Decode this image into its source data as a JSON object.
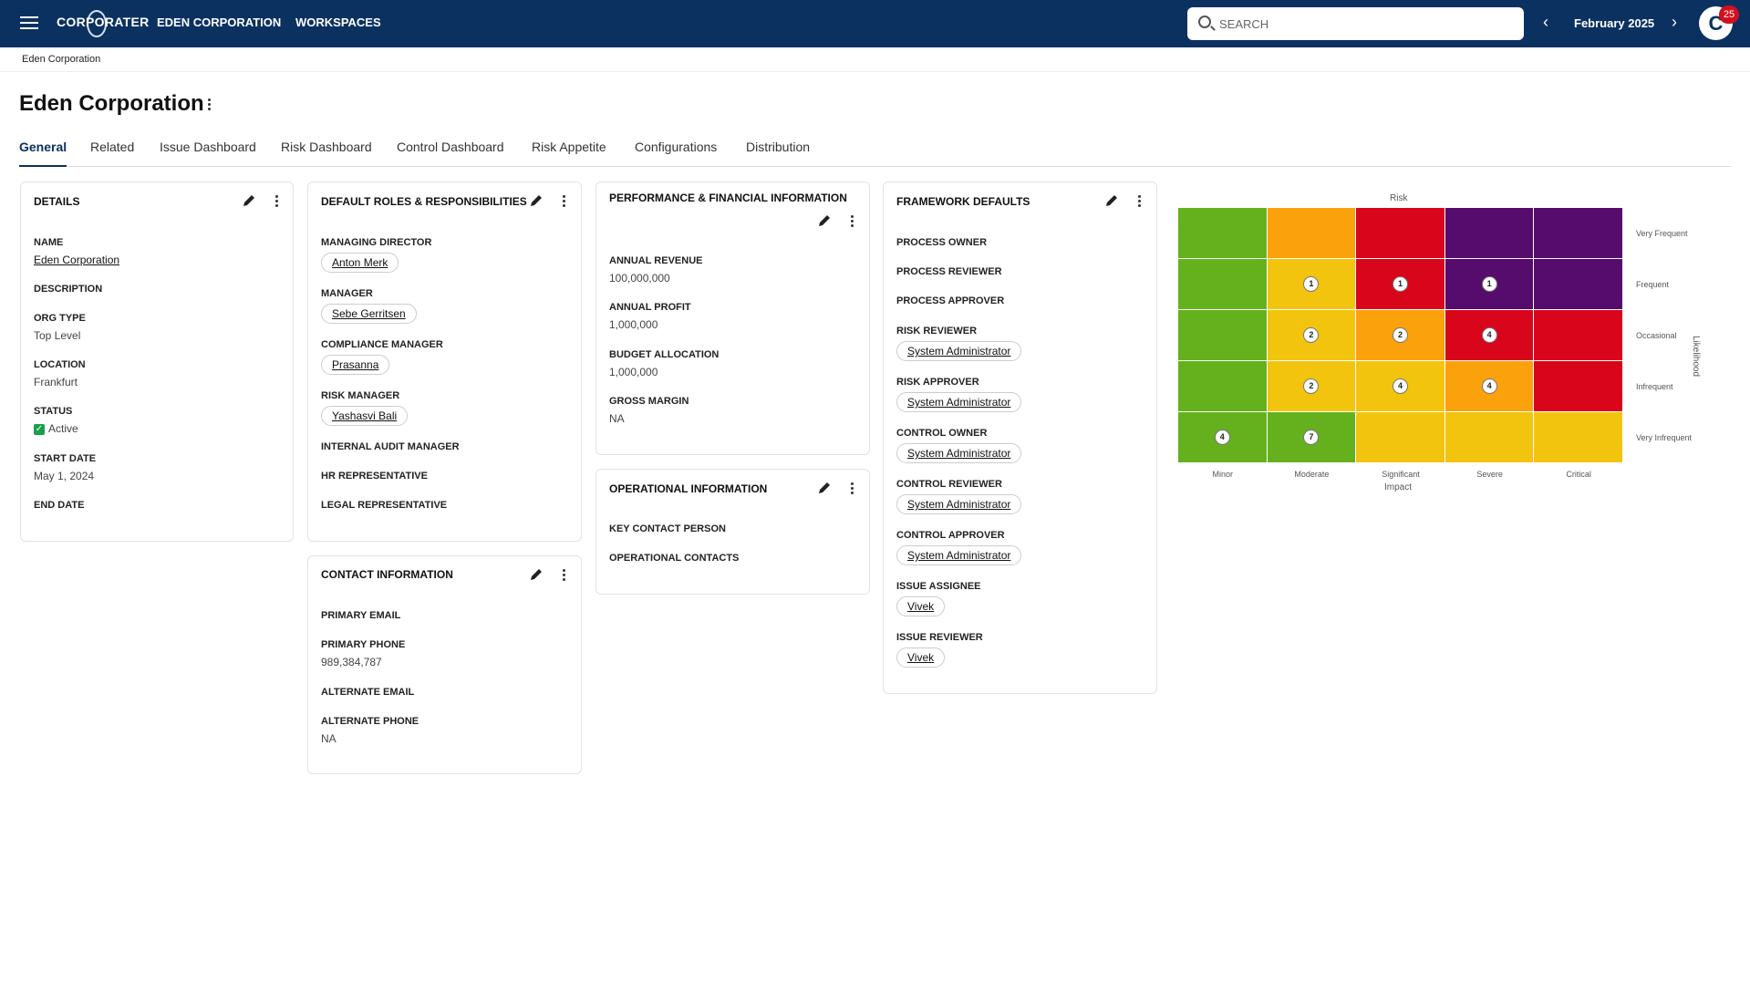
{
  "topbar": {
    "brand": "CORPORATER",
    "org_link": "EDEN CORPORATION",
    "workspaces_link": "WORKSPACES",
    "search_placeholder": "SEARCH",
    "period": "February 2025",
    "avatar_letter": "C",
    "notification_count": "25"
  },
  "breadcrumb": "Eden Corporation",
  "page_title": "Eden Corporation",
  "tabs": [
    "General",
    "Related",
    "Issue Dashboard",
    "Risk Dashboard",
    "Control Dashboard",
    "Risk Appetite",
    "Configurations",
    "Distribution"
  ],
  "details": {
    "title": "DETAILS",
    "name_label": "NAME",
    "name_value": "Eden Corporation",
    "description_label": "DESCRIPTION",
    "org_type_label": "ORG TYPE",
    "org_type_value": "Top Level",
    "location_label": "LOCATION",
    "location_value": "Frankfurt",
    "status_label": "STATUS",
    "status_value": "Active",
    "start_date_label": "START DATE",
    "start_date_value": "May 1, 2024",
    "end_date_label": "END DATE"
  },
  "roles": {
    "title": "DEFAULT ROLES & RESPONSIBILITIES",
    "managing_director_label": "MANAGING DIRECTOR",
    "managing_director": "Anton Merk",
    "manager_label": "MANAGER",
    "manager": "Sebe Gerritsen",
    "compliance_manager_label": "COMPLIANCE MANAGER",
    "compliance_manager": "Prasanna",
    "risk_manager_label": "RISK MANAGER",
    "risk_manager": "Yashasvi Bali",
    "internal_audit_label": "INTERNAL AUDIT MANAGER",
    "hr_label": "HR REPRESENTATIVE",
    "legal_label": "LEGAL REPRESENTATIVE"
  },
  "contact": {
    "title": "CONTACT INFORMATION",
    "primary_email_label": "PRIMARY EMAIL",
    "primary_phone_label": "PRIMARY PHONE",
    "primary_phone": "989,384,787",
    "alternate_email_label": "ALTERNATE EMAIL",
    "alternate_phone_label": "ALTERNATE PHONE",
    "alternate_phone": "NA"
  },
  "performance": {
    "title": "PERFORMANCE & FINANCIAL INFORMATION",
    "annual_revenue_label": "ANNUAL REVENUE",
    "annual_revenue": "100,000,000",
    "annual_profit_label": "ANNUAL PROFIT",
    "annual_profit": "1,000,000",
    "budget_label": "BUDGET ALLOCATION",
    "budget": "1,000,000",
    "gross_margin_label": "GROSS MARGIN",
    "gross_margin": "NA"
  },
  "operational": {
    "title": "OPERATIONAL INFORMATION",
    "key_contact_label": "KEY CONTACT PERSON",
    "operational_contacts_label": "OPERATIONAL CONTACTS"
  },
  "framework": {
    "title": "FRAMEWORK DEFAULTS",
    "process_owner_label": "PROCESS OWNER",
    "process_reviewer_label": "PROCESS REVIEWER",
    "process_approver_label": "PROCESS APPROVER",
    "risk_reviewer_label": "RISK REVIEWER",
    "risk_reviewer": "System Administrator",
    "risk_approver_label": "RISK APPROVER",
    "risk_approver": "System Administrator",
    "control_owner_label": "CONTROL OWNER",
    "control_owner": "System Administrator",
    "control_reviewer_label": "CONTROL REVIEWER",
    "control_reviewer": "System Administrator",
    "control_approver_label": "CONTROL APPROVER",
    "control_approver": "System Administrator",
    "issue_assignee_label": "ISSUE ASSIGNEE",
    "issue_assignee": "Vivek",
    "issue_reviewer_label": "ISSUE REVIEWER",
    "issue_reviewer": "Vivek"
  },
  "chart_data": {
    "type": "heatmap",
    "title": "Risk",
    "xlabel": "Impact",
    "ylabel": "Likelihood",
    "x_categories": [
      "Minor",
      "Moderate",
      "Significant",
      "Severe",
      "Critical"
    ],
    "y_categories": [
      "Very Frequent",
      "Frequent",
      "Occasional",
      "Infrequent",
      "Very Infrequent"
    ],
    "colors": [
      [
        "#64b11d",
        "#fba10b",
        "#d9061b",
        "#550c6c",
        "#550c6c"
      ],
      [
        "#64b11d",
        "#f2c40d",
        "#d9061b",
        "#550c6c",
        "#550c6c"
      ],
      [
        "#64b11d",
        "#f2c40d",
        "#fba10b",
        "#d9061b",
        "#d9061b"
      ],
      [
        "#64b11d",
        "#f2c40d",
        "#f2c40d",
        "#fba10b",
        "#d9061b"
      ],
      [
        "#64b11d",
        "#64b11d",
        "#f2c40d",
        "#f2c40d",
        "#f2c40d"
      ]
    ],
    "counts": [
      [
        null,
        null,
        null,
        null,
        null
      ],
      [
        null,
        1,
        1,
        1,
        null
      ],
      [
        null,
        2,
        2,
        4,
        null
      ],
      [
        null,
        2,
        4,
        4,
        null
      ],
      [
        4,
        7,
        null,
        null,
        null
      ]
    ]
  }
}
